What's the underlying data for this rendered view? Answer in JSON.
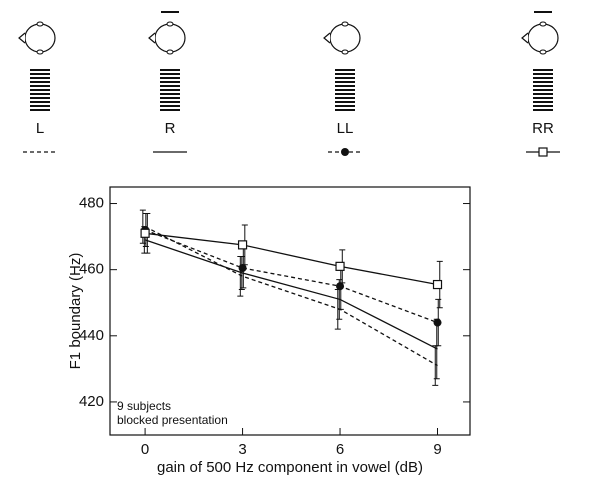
{
  "chart_data": {
    "type": "line",
    "x_label": "gain of 500 Hz component in vowel (dB)",
    "y_label": "F1 boundary (Hz)",
    "annotations": [
      "9 subjects",
      "blocked presentation"
    ],
    "x": [
      0,
      3,
      6,
      9
    ],
    "xlim": [
      -1.08,
      10
    ],
    "xticks": [
      0,
      3,
      6,
      9
    ],
    "ylim": [
      410,
      485
    ],
    "yticks": [
      420,
      440,
      460,
      480
    ],
    "series": [
      {
        "name": "L",
        "color": "#111111",
        "linestyle": "dashed",
        "marker": "none",
        "values": [
          473,
          458,
          448,
          431
        ],
        "errors": [
          5,
          6,
          6,
          6
        ]
      },
      {
        "name": "R",
        "color": "#111111",
        "linestyle": "solid",
        "marker": "none",
        "values": [
          469,
          459,
          451,
          436
        ],
        "errors": [
          4,
          5,
          6,
          9
        ]
      },
      {
        "name": "LL",
        "color": "#111111",
        "linestyle": "dashed",
        "marker": "circle",
        "values": [
          472,
          460.5,
          455,
          444
        ],
        "errors": [
          5,
          6,
          7,
          7
        ]
      },
      {
        "name": "RR",
        "color": "#111111",
        "linestyle": "solid",
        "marker": "square",
        "values": [
          471,
          467.5,
          461,
          455.5
        ],
        "errors": [
          6,
          6,
          5,
          7
        ]
      }
    ]
  }
}
